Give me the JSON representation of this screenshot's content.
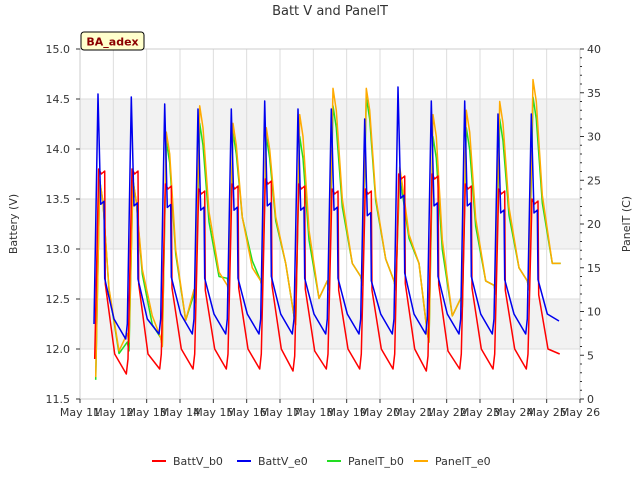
{
  "chart_data": {
    "type": "line",
    "title": "Batt V and PanelT",
    "site_label": "BA_adex",
    "xlabel": "",
    "ylabel": "Battery (V)",
    "y2label": "PanelT (C)",
    "x_tick_labels": [
      "May 11",
      "May 12",
      "May 13",
      "May 14",
      "May 15",
      "May 16",
      "May 17",
      "May 18",
      "May 19",
      "May 20",
      "May 21",
      "May 22",
      "May 23",
      "May 24",
      "May 25",
      "May 26"
    ],
    "xlim": [
      11,
      26
    ],
    "ylim": [
      11.5,
      15.0
    ],
    "y_ticks": [
      11.5,
      12.0,
      12.5,
      13.0,
      13.5,
      14.0,
      14.5,
      15.0
    ],
    "y_tick_labels": [
      "11.5",
      "12.0",
      "12.5",
      "13.0",
      "13.5",
      "14.0",
      "14.5",
      "15.0"
    ],
    "y2lim": [
      0,
      40
    ],
    "y2_ticks": [
      0,
      5,
      10,
      15,
      20,
      25,
      30,
      35,
      40
    ],
    "y2_tick_labels": [
      "0",
      "5",
      "10",
      "15",
      "20",
      "25",
      "30",
      "35",
      "40"
    ],
    "bands": [
      [
        12.0,
        12.5
      ],
      [
        13.0,
        13.5
      ],
      [
        14.0,
        14.5
      ]
    ],
    "colors": {
      "BattV_b0": "#ff0000",
      "BattV_e0": "#0000ee",
      "PanelT_b0": "#22dd22",
      "PanelT_e0": "#ffaa00",
      "band": "#f2f2f2",
      "grid": "#dddddd"
    },
    "series": [
      {
        "name": "BattV_b0",
        "axis": "left",
        "label": "BattV_b0",
        "day_min": [
          11.75,
          11.75,
          11.8,
          11.8,
          11.8,
          11.8,
          11.78,
          11.8,
          11.8,
          11.8,
          11.78,
          11.8,
          11.8,
          11.8
        ],
        "day_peak": [
          13.8,
          13.8,
          13.65,
          13.6,
          13.65,
          13.7,
          13.65,
          13.6,
          13.6,
          13.75,
          13.75,
          13.65,
          13.6,
          13.5
        ],
        "end_value": 11.95
      },
      {
        "name": "BattV_e0",
        "axis": "left",
        "label": "BattV_e0",
        "day_min": [
          12.1,
          12.1,
          12.15,
          12.15,
          12.15,
          12.15,
          12.15,
          12.15,
          12.15,
          12.15,
          12.15,
          12.15,
          12.15,
          12.15
        ],
        "day_peak": [
          14.55,
          14.52,
          14.45,
          14.4,
          14.4,
          14.48,
          14.4,
          14.4,
          14.3,
          14.62,
          14.48,
          14.48,
          14.35,
          14.35
        ],
        "end_value": 12.28
      },
      {
        "name": "PanelT_b0",
        "axis": "right",
        "label": "PanelT_b0",
        "day_min": [
          2.2,
          5.5,
          6.0,
          11.0,
          12.8,
          12.5,
          8.5,
          12.5,
          13.0,
          12.5,
          6.5,
          10.5,
          12.0,
          12.5
        ],
        "day_peak": [
          25.0,
          25.0,
          29.5,
          31.5,
          30.5,
          30.0,
          30.0,
          33.5,
          34.5,
          25.5,
          30.0,
          31.0,
          32.0,
          34.5
        ],
        "end_value": 14.5
      },
      {
        "name": "PanelT_e0",
        "axis": "right",
        "label": "PanelT_e0",
        "day_min": [
          2.5,
          6.5,
          6.0,
          11.5,
          12.0,
          12.5,
          8.5,
          12.5,
          13.0,
          12.5,
          6.5,
          10.5,
          12.0,
          12.5
        ],
        "day_peak": [
          25.0,
          25.0,
          30.5,
          33.5,
          31.5,
          31.0,
          32.5,
          35.5,
          35.5,
          26.5,
          32.5,
          33.0,
          34.0,
          36.5
        ],
        "end_value": 14.5
      }
    ],
    "legend": [
      "BattV_b0",
      "BattV_e0",
      "PanelT_b0",
      "PanelT_e0"
    ],
    "legend_position": "bottom-center",
    "grid": true
  }
}
